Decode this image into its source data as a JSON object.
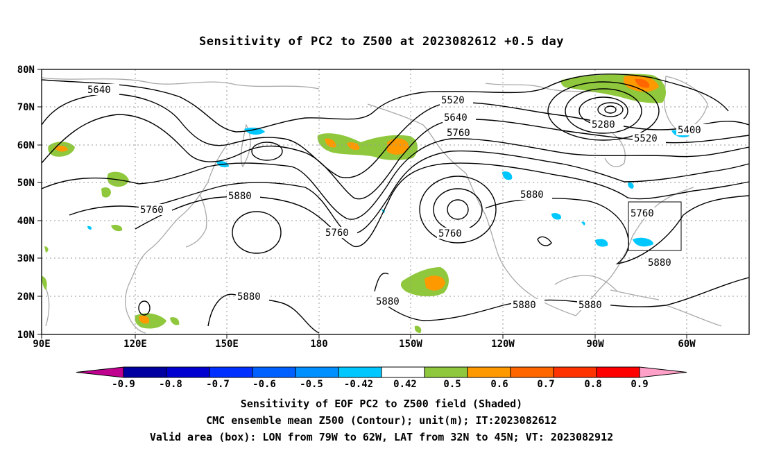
{
  "title": "Sensitivity of PC2 to Z500 at 2023082612 +0.5 day",
  "map": {
    "lat_ticks": [
      "80N",
      "70N",
      "60N",
      "50N",
      "40N",
      "30N",
      "20N",
      "10N"
    ],
    "lon_ticks": [
      "90E",
      "120E",
      "150E",
      "180",
      "150W",
      "120W",
      "90W",
      "60W"
    ],
    "gridlines": true,
    "contour_labels": [
      "5640",
      "5520",
      "5640",
      "5760",
      "5280",
      "5400",
      "5520",
      "5760",
      "5880",
      "5760",
      "5760",
      "5880",
      "5760",
      "5880",
      "5880",
      "5880",
      "5880",
      "5880"
    ],
    "valid_box": {
      "lon_from": "79W",
      "lon_to": "62W",
      "lat_from": "32N",
      "lat_to": "45N"
    }
  },
  "colorbar": {
    "labels": [
      "-0.9",
      "-0.8",
      "-0.7",
      "-0.6",
      "-0.5",
      "-0.42",
      "0.42",
      "0.5",
      "0.6",
      "0.7",
      "0.8",
      "0.9"
    ],
    "colors": [
      "#c0008f",
      "#0000a0",
      "#0000d0",
      "#0030ff",
      "#0060ff",
      "#0090ff",
      "#00c8ff",
      "#ffffff",
      "#8fc83c",
      "#ff9900",
      "#ff6600",
      "#ff3300",
      "#ff0000",
      "#ffa0c8"
    ]
  },
  "captions": {
    "line1": "Sensitivity of EOF PC2 to Z500 field (Shaded)",
    "line2": "CMC ensemble mean Z500 (Contour); unit(m); IT:2023082612",
    "line3": "Valid area (box): LON from 79W to 62W, LAT from 32N to 45N; VT: 2023082912"
  }
}
